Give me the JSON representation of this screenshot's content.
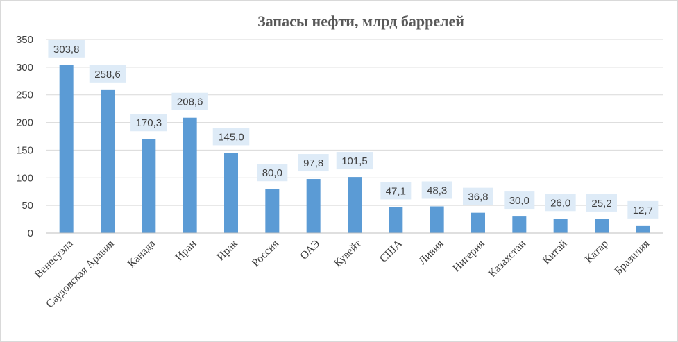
{
  "chart_data": {
    "type": "bar",
    "title": "Запасы нефти, млрд баррелей",
    "categories": [
      "Венесуэла",
      "Саудовская Аравия",
      "Канада",
      "Иран",
      "Ирак",
      "Россия",
      "ОАЭ",
      "Кувейт",
      "США",
      "Ливия",
      "Нигерия",
      "Казахстан",
      "Китай",
      "Катар",
      "Бразилия"
    ],
    "values": [
      303.8,
      258.6,
      170.3,
      208.6,
      145.0,
      80.0,
      97.8,
      101.5,
      47.1,
      48.3,
      36.8,
      30.0,
      26.0,
      25.2,
      12.7
    ],
    "data_labels": [
      "303,8",
      "258,6",
      "170,3",
      "208,6",
      "145,0",
      "80,0",
      "97,8",
      "101,5",
      "47,1",
      "48,3",
      "36,8",
      "30,0",
      "26,0",
      "25,2",
      "12,7"
    ],
    "yticks": [
      "0",
      "50",
      "100",
      "150",
      "200",
      "250",
      "300",
      "350"
    ],
    "ylim": [
      0,
      350
    ],
    "grid": true,
    "legend": "none",
    "colors": {
      "bar": "#5b9bd5",
      "label_bg": "#deebf7",
      "grid": "#d9d9d9"
    }
  }
}
